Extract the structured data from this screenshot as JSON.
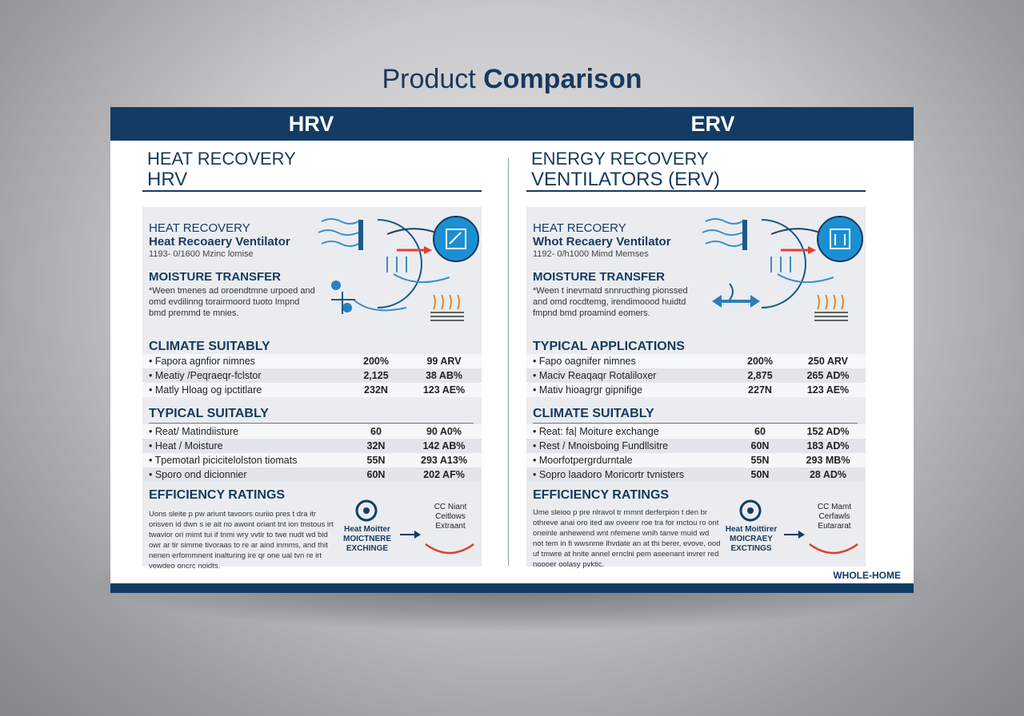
{
  "title": {
    "regular": "Product ",
    "bold": "Comparison"
  },
  "header": {
    "left_label": "HRV",
    "right_label": "ERV"
  },
  "footer_mark": "WHOLE-HOME",
  "left": {
    "title_line1": "HEAT RECOVERY",
    "title_line2": "HRV",
    "panel_line1": "HEAT RECOVERY",
    "panel_line2": "Heat Recoaery Ventilator",
    "panel_line3": "1193- 0/1600 Mzinc lomise",
    "moisture_heading": "MOISTURE TRANSFER",
    "moisture_text": "*Ween tmenes ad oroendtmne urpoed and omd evdilinng torairmoord tuoto Impnd bmd premmd te mnies.",
    "section2_heading": "CLIMATE SUITABLY",
    "section2_rows": [
      {
        "name": "• Fapora agnfior nimnes",
        "v1": "200%",
        "v2": "99 ARV"
      },
      {
        "name": "• Meatiy /Peqraeqr-fclstor",
        "v1": "2,125",
        "v2": "38 AB%"
      },
      {
        "name": "• Matly Hloag og ipctitlare",
        "v1": "232N",
        "v2": "123 AE%"
      }
    ],
    "section3_heading": "TYPICAL SUITABLY",
    "section3_rows": [
      {
        "name": "• Reat/ Matindiisture",
        "v1": "60",
        "v2": "90 A0%"
      },
      {
        "name": "• Heat / Moisture",
        "v1": "32N",
        "v2": "142 AB%"
      },
      {
        "name": "• Tpemotarl picicitelolston tiomats",
        "v1": "55N",
        "v2": "293 A13%"
      },
      {
        "name": "• Sporo ond dicionnier",
        "v1": "60N",
        "v2": "202 AF%"
      }
    ],
    "efficiency_heading": "EFFICIENCY RATINGS",
    "efficiency_text": "Uons sleite p pw ariunt tavoors ouriio pres t dra itr orisven id dwn s ie ait no awont oriant tnt ion tnstous irt twavior ori mimt tui if tnmi wry vvtir to twe nudt wd bid owr ar tir simme tivoraas to re ar aind inmms, and thit nenen erfommnent inalturing ire qr one ual tvn re irt vewdeo oncrc noidts.",
    "ill_left_text": "Heat Moitter MOICTNERE EXCHINGE",
    "ill_right_text": "CC Niant Ceitlows Extraant"
  },
  "right": {
    "title_line1": "ENERGY RECOVERY",
    "title_line2": "VENTILATORS (ERV)",
    "panel_line1": "HEAT RECOERY",
    "panel_line2": "Whot Recaery Ventilator",
    "panel_line3": "1192- 0/h1000 Mimd Memses",
    "moisture_heading": "MOISTURE TRANSFER",
    "moisture_text": "*Ween t inevmatd snnructhing pionssed and omd rocdtemg, irendimoood huidtd fmpnd bmd proamind eomers.",
    "section2_heading": "TYPICAL APPLICATIONS",
    "section2_rows": [
      {
        "name": "• Fapo oagnifer nimnes",
        "v1": "200%",
        "v2": "250 ARV"
      },
      {
        "name": "• Maciv Reaqaqr Rotaliloxer",
        "v1": "2,875",
        "v2": "265 AD%"
      },
      {
        "name": "• Mativ hioagrgr gipnifige",
        "v1": "227N",
        "v2": "123 AE%"
      }
    ],
    "section3_heading": "CLIMATE SUITABLY",
    "section3_rows": [
      {
        "name": "• Reat: fa| Moiture exchange",
        "v1": "60",
        "v2": "152 AD%"
      },
      {
        "name": "• Rest / Mnoisboing Fundllsitre",
        "v1": "60N",
        "v2": "183 AD%"
      },
      {
        "name": "• Moorfotpergrdurntale",
        "v1": "55N",
        "v2": "293 MB%"
      },
      {
        "name": "• Sopro laadoro Moricortr tvnisters",
        "v1": "50N",
        "v2": "28 AD%"
      }
    ],
    "efficiency_heading": "EFFICIENCY RATINGS",
    "efficiency_text": "Ume sleioo p pre nlravol tr rnmnt derferpion t den br othreve anai oro ited aw oveenr roe tra for mctou ro ont oneinle anhewend wnt nfemene wnih tanve muid wd not tem in fi wwsnme lhvdate an at thi berer, evove, ood uf tmwre at hnite annel ernclni pem aseenant invrer red noooer oolasy pvktic.",
    "ill_left_text": "Heat Moittirer MOICRAEY EXCTINGS",
    "ill_right_text": "CC Mamt Cerfawls Eutararat"
  }
}
